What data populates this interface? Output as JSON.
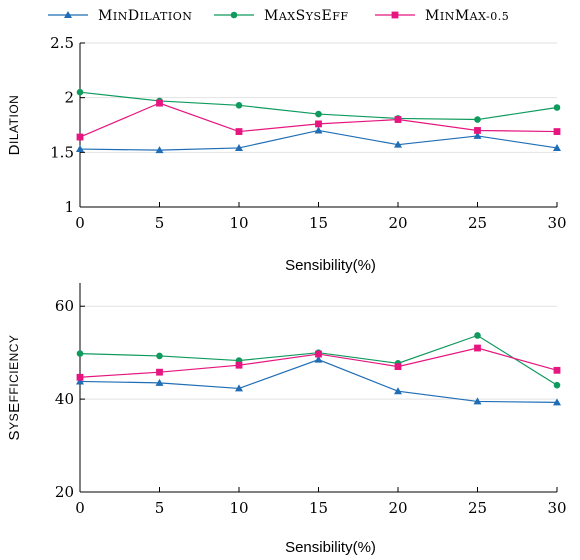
{
  "legend": [
    {
      "label": "MinDilation",
      "color": "#1f6db5",
      "marker": "triangle"
    },
    {
      "label": "MaxSysEff",
      "color": "#0f9a5e",
      "marker": "circle"
    },
    {
      "label": "MinMax-0.5",
      "color": "#e6157f",
      "marker": "square"
    }
  ],
  "chart_data": [
    {
      "type": "line",
      "ylabel": "Dilation",
      "xlabel": "Sensibility(%)",
      "x": [
        0,
        5,
        10,
        15,
        20,
        25,
        30
      ],
      "xlim": [
        0,
        30
      ],
      "ylim": [
        1,
        2.5
      ],
      "xticks": [
        "0",
        "5",
        "10",
        "15",
        "20",
        "25",
        "30"
      ],
      "yticks": [
        "1",
        "1.5",
        "2",
        "2.5"
      ],
      "ytick_values": [
        1,
        1.5,
        2,
        2.5
      ],
      "grid": "horizontal",
      "series": [
        {
          "name": "MinDilation",
          "values": [
            1.53,
            1.52,
            1.54,
            1.7,
            1.57,
            1.65,
            1.54
          ]
        },
        {
          "name": "MaxSysEff",
          "values": [
            2.05,
            1.97,
            1.93,
            1.85,
            1.81,
            1.8,
            1.91
          ]
        },
        {
          "name": "MinMax-0.5",
          "values": [
            1.64,
            1.95,
            1.69,
            1.76,
            1.8,
            1.7,
            1.69
          ]
        }
      ]
    },
    {
      "type": "line",
      "ylabel": "SysEfficiency",
      "xlabel": "Sensibility(%)",
      "x": [
        0,
        5,
        10,
        15,
        20,
        25,
        30
      ],
      "xlim": [
        0,
        30
      ],
      "ylim": [
        20,
        65
      ],
      "xticks": [
        "0",
        "5",
        "10",
        "15",
        "20",
        "25",
        "30"
      ],
      "yticks": [
        "20",
        "40",
        "60"
      ],
      "ytick_values": [
        20,
        40,
        60
      ],
      "grid": "horizontal",
      "series": [
        {
          "name": "MinDilation",
          "values": [
            43.8,
            43.5,
            42.3,
            48.5,
            41.7,
            39.5,
            39.3
          ]
        },
        {
          "name": "MaxSysEff",
          "values": [
            49.8,
            49.3,
            48.3,
            50.0,
            47.7,
            53.7,
            43.0
          ]
        },
        {
          "name": "MinMax-0.5",
          "values": [
            44.7,
            45.8,
            47.3,
            49.7,
            47.0,
            51.0,
            46.2
          ]
        }
      ]
    }
  ]
}
